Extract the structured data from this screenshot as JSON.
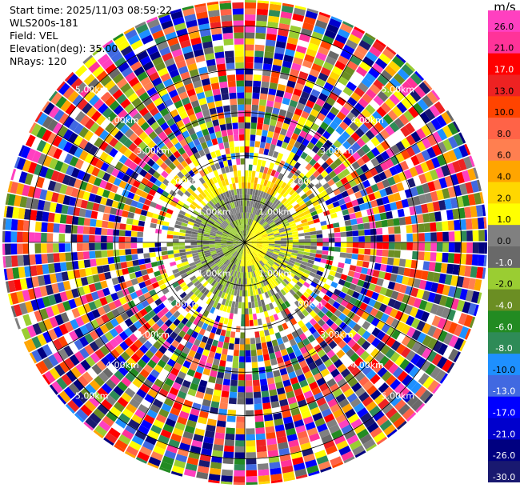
{
  "info": {
    "start_time": "Start time: 2025/11/03 08:59:22",
    "station": "WLS200s-181",
    "field": "Field: VEL",
    "elevation": "Elevation(deg): 35.00",
    "nrays": "NRays: 120"
  },
  "colorbar": {
    "unit": "m/s",
    "ticks": [
      "26.0",
      "21.0",
      "17.0",
      "13.0",
      "10.0",
      "8.0",
      "6.0",
      "4.0",
      "2.0",
      "1.0",
      "0.0",
      "-1.0",
      "-2.0",
      "-4.0",
      "-6.0",
      "-8.0",
      "-10.0",
      "-13.0",
      "-17.0",
      "-21.0",
      "-26.0",
      "-30.0"
    ],
    "colors": [
      "#ff40c0",
      "#ff3399",
      "#ff0000",
      "#ee2222",
      "#ff4400",
      "#ff6347",
      "#ff7f50",
      "#ffa500",
      "#ffd700",
      "#ffff00",
      "#808080",
      "#696969",
      "#9acd32",
      "#6b8e23",
      "#228b22",
      "#2e8b57",
      "#1e90ff",
      "#4169e1",
      "#0000ff",
      "#0000cd",
      "#000080",
      "#191970"
    ]
  },
  "chart_data": {
    "type": "heatmap",
    "field": "VEL",
    "unit": "m/s",
    "elevation_deg": 35.0,
    "nrays": 120,
    "range_rings_km": [
      1.0,
      2.0,
      3.0,
      4.0,
      5.0
    ],
    "ring_labels": [
      "1.00km",
      "2.00km",
      "3.00km",
      "4.00km",
      "5.00km"
    ],
    "spokes_deg": [
      0,
      30,
      60,
      90,
      120,
      150,
      180,
      210,
      240,
      270,
      300,
      330
    ],
    "max_range_km": 5.6,
    "description_regions": [
      {
        "from_km": 0.0,
        "to_km": 0.5,
        "dominant": "4.0 (yellow) east / 0.0 (gray) west"
      },
      {
        "from_km": 0.5,
        "to_km": 1.5,
        "dominant": "-1.0 to 2.0 (gray/green/yellow)"
      },
      {
        "from_km": 1.5,
        "to_km": 2.5,
        "dominant": "noise (mixed, gaps)"
      },
      {
        "from_km": 2.5,
        "to_km": 5.6,
        "dominant": "random noise across full scale"
      }
    ]
  }
}
